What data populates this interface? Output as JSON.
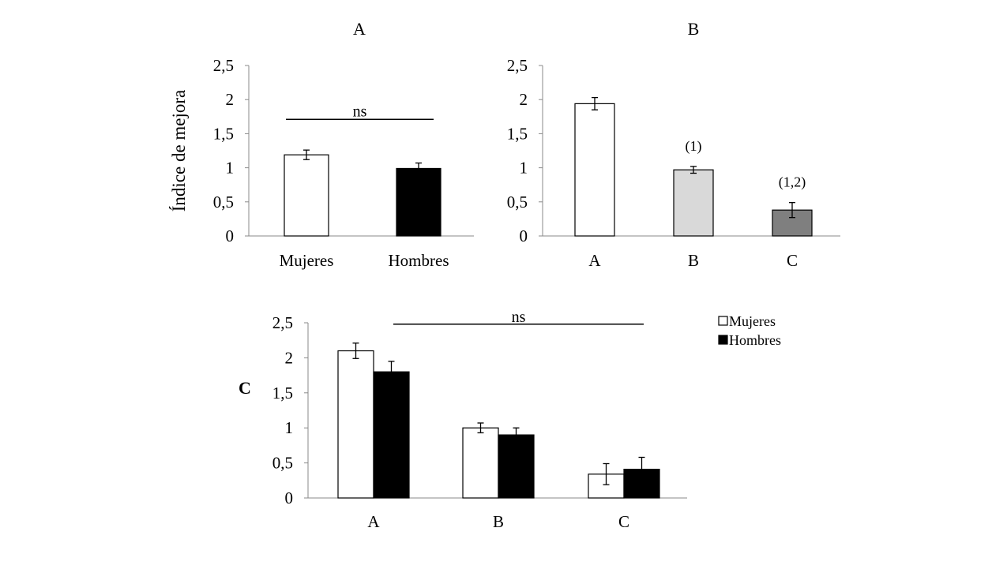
{
  "y_axis_label": "Índice de mejora",
  "chart_data": [
    {
      "id": "A",
      "type": "bar",
      "title": "A",
      "ylabel": "Índice de mejora",
      "ylim": [
        0,
        2.5
      ],
      "ticks": [
        "0",
        "0,5",
        "1",
        "1,5",
        "2",
        "2,5"
      ],
      "categories": [
        "Mujeres",
        "Hombres"
      ],
      "values": [
        1.19,
        0.99
      ],
      "errors": [
        0.07,
        0.08
      ],
      "colors": [
        "#ffffff",
        "#000000"
      ],
      "significance": {
        "label": "ns",
        "y": 1.71
      }
    },
    {
      "id": "B",
      "type": "bar",
      "title": "B",
      "ylim": [
        0,
        2.5
      ],
      "ticks": [
        "0",
        "0,5",
        "1",
        "1,5",
        "2",
        "2,5"
      ],
      "categories": [
        "A",
        "B",
        "C"
      ],
      "values": [
        1.94,
        0.97,
        0.38
      ],
      "errors": [
        0.09,
        0.05,
        0.11
      ],
      "colors": [
        "#ffffff",
        "#d9d9d9",
        "#7f7f7f"
      ],
      "annotations": [
        "",
        "(1)",
        "(1,2)"
      ]
    },
    {
      "id": "C",
      "type": "bar",
      "title": "C",
      "ylim": [
        0,
        2.5
      ],
      "ticks": [
        "0",
        "0,5",
        "1",
        "1,5",
        "2",
        "2,5"
      ],
      "categories": [
        "A",
        "B",
        "C"
      ],
      "series": [
        {
          "name": "Mujeres",
          "values": [
            2.1,
            1.0,
            0.34
          ],
          "errors": [
            0.11,
            0.07,
            0.15
          ],
          "color": "#ffffff"
        },
        {
          "name": "Hombres",
          "values": [
            1.8,
            0.9,
            0.41
          ],
          "errors": [
            0.15,
            0.1,
            0.17
          ],
          "color": "#000000"
        }
      ],
      "legend_position": "top-right",
      "significance": {
        "label": "ns",
        "y": 2.48
      }
    }
  ]
}
